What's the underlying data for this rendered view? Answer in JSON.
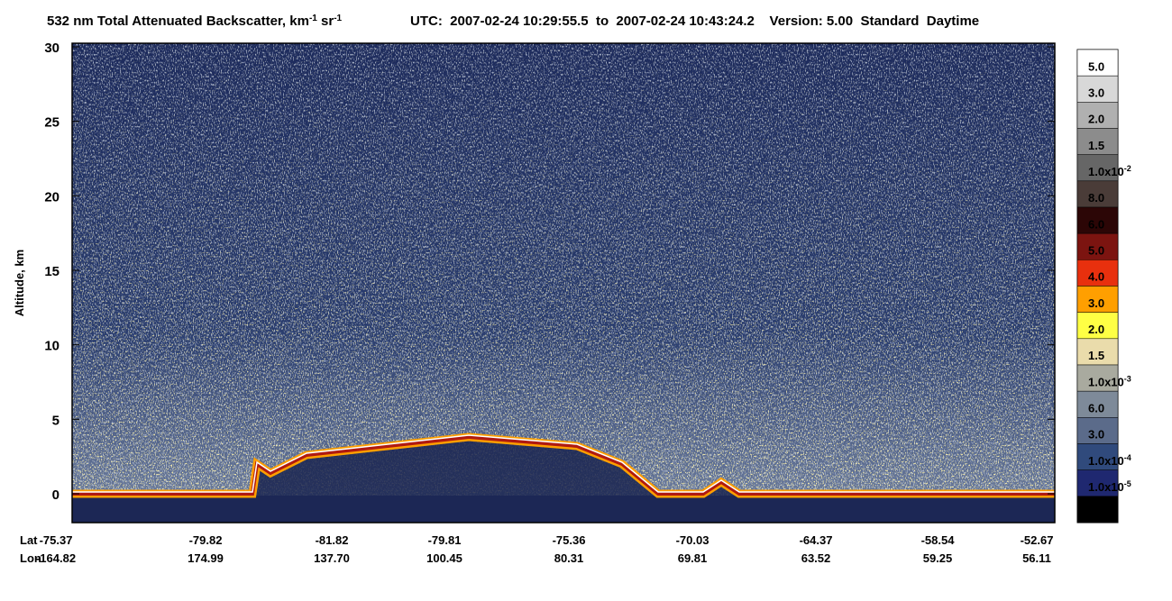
{
  "chart_data": {
    "type": "heatmap",
    "title_segments": [
      "532 nm Total Attenuated Backscatter, km",
      "-1",
      " sr",
      "-1"
    ],
    "subtitle": "UTC:  2007-02-24 10:29:55.5  to  2007-02-24 10:43:24.2    Version: 5.00  Standard  Daytime",
    "ylabel": "Altitude, km",
    "ylim": [
      -2,
      30
    ],
    "yticks": [
      0,
      5,
      10,
      15,
      20,
      25,
      30
    ],
    "x_rows": [
      {
        "name": "Lat",
        "labels": [
          "-75.37",
          "-79.82",
          "-81.82",
          "-79.81",
          "-75.36",
          "-70.03",
          "-64.37",
          "-58.54",
          "-52.67"
        ]
      },
      {
        "name": "Lon",
        "labels": [
          "-164.82",
          "174.99",
          "137.70",
          "100.45",
          "80.31",
          "69.81",
          "63.52",
          "59.25",
          "56.11"
        ]
      }
    ],
    "colorbar": {
      "colors": [
        "#ffffff",
        "#d8d8d8",
        "#b0b0b0",
        "#8c8c8c",
        "#666666",
        "#4a3c38",
        "#2c0606",
        "#7c1410",
        "#e8300e",
        "#ff9f00",
        "#ffff44",
        "#eadcab",
        "#a9aa9f",
        "#7e8a99",
        "#5b6b8a",
        "#304a7c",
        "#1f2870",
        "#000000"
      ],
      "labels": [
        "5.0",
        "3.0",
        "2.0",
        "1.5",
        {
          "mantissa": "1.0x10",
          "exp": "-2"
        },
        "8.0",
        "6.0",
        "5.0",
        "4.0",
        "3.0",
        "2.0",
        "1.5",
        {
          "mantissa": "1.0x10",
          "exp": "-3"
        },
        "6.0",
        "3.0",
        {
          "mantissa": "1.0x10",
          "exp": "-4"
        },
        {
          "mantissa": "1.0x10",
          "exp": "-5"
        }
      ]
    }
  }
}
